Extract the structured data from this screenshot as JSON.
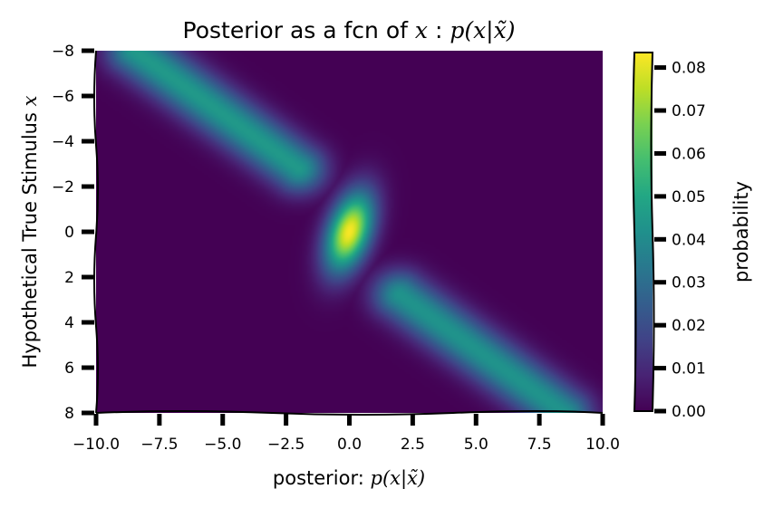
{
  "chart_data": {
    "type": "heatmap",
    "title": {
      "text": "Posterior as a fcn of ",
      "math_x": "x",
      "sep": " : ",
      "math_expr": "p(x|x̃)"
    },
    "xlabel": {
      "text": "posterior: ",
      "math": "p(x|x̃)"
    },
    "ylabel": {
      "text": "Hypothetical True Stimulus ",
      "math": "x"
    },
    "x_ticks": [
      "−10.0",
      "−7.5",
      "−5.0",
      "−2.5",
      "0.0",
      "2.5",
      "5.0",
      "7.5",
      "10.0"
    ],
    "x_tick_values": [
      -10,
      -7.5,
      -5,
      -2.5,
      0,
      2.5,
      5,
      7.5,
      10
    ],
    "y_ticks": [
      "−8",
      "−6",
      "−4",
      "−2",
      "0",
      "2",
      "4",
      "6",
      "8"
    ],
    "y_tick_values": [
      -8,
      -6,
      -4,
      -2,
      0,
      2,
      4,
      6,
      8
    ],
    "xlim": [
      -10,
      10
    ],
    "ylim": [
      -8,
      8
    ],
    "y_inverted": true,
    "colormap": "viridis",
    "colorbar": {
      "label": "probability",
      "range": [
        0,
        0.0835
      ],
      "ticks": [
        "0.00",
        "0.01",
        "0.02",
        "0.03",
        "0.04",
        "0.05",
        "0.06",
        "0.07",
        "0.08"
      ],
      "tick_values": [
        0,
        0.01,
        0.02,
        0.03,
        0.04,
        0.05,
        0.06,
        0.07,
        0.08
      ]
    },
    "description_of_values": {
      "central_peak": {
        "x_center": 0.0,
        "y_center": 0.0,
        "peak_value": 0.083
      },
      "diagonal_bands": [
        {
          "from_xy": [
            -8.5,
            -8
          ],
          "to_xy": [
            -2.0,
            -2.8
          ],
          "value": 0.045
        },
        {
          "from_xy": [
            2.0,
            2.8
          ],
          "to_xy": [
            8.5,
            8
          ],
          "value": 0.043
        }
      ]
    },
    "grid": false,
    "background_color": "#ffffff",
    "axis_color": "#000000"
  }
}
